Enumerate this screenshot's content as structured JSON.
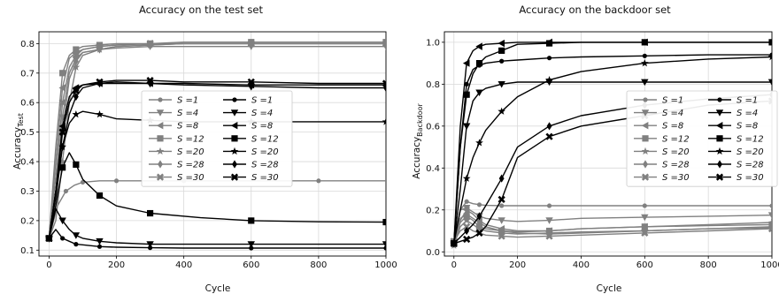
{
  "chart_data": [
    {
      "type": "line",
      "title": "Accuracy on the test set",
      "xlabel": "Cycle",
      "ylabel": "Accuracy",
      "ylabel_sub": "Test",
      "xlim": [
        -30,
        1000
      ],
      "ylim": [
        0.08,
        0.84
      ],
      "xticks": [
        0,
        200,
        400,
        600,
        800,
        1000
      ],
      "yticks": [
        0.1,
        0.2,
        0.3,
        0.4,
        0.5,
        0.6,
        0.7,
        0.8
      ],
      "grid": true,
      "legend_placement": "center",
      "legend_columns": [
        [
          "S =1",
          "S =4",
          "S =8",
          "S =12",
          "S =20",
          "S =28",
          "S =30"
        ],
        [
          "S =1",
          "S =4",
          "S =8",
          "S =12",
          "S =20",
          "S =28",
          "S =30"
        ]
      ],
      "series": [
        {
          "name": "S =1",
          "group": "gray",
          "marker": "circle",
          "x": [
            0,
            25,
            50,
            75,
            100,
            150,
            200,
            300,
            400,
            600,
            800,
            1000
          ],
          "y": [
            0.14,
            0.25,
            0.3,
            0.32,
            0.33,
            0.335,
            0.335,
            0.335,
            0.335,
            0.335,
            0.335,
            0.335
          ]
        },
        {
          "name": "S =4",
          "group": "gray",
          "marker": "tri-down",
          "x": [
            0,
            20,
            40,
            60,
            80,
            100,
            150,
            200,
            300,
            400,
            600,
            800,
            1000
          ],
          "y": [
            0.14,
            0.3,
            0.55,
            0.7,
            0.75,
            0.77,
            0.78,
            0.785,
            0.79,
            0.79,
            0.79,
            0.79,
            0.79
          ]
        },
        {
          "name": "S =8",
          "group": "gray",
          "marker": "tri-left",
          "x": [
            0,
            20,
            40,
            60,
            80,
            100,
            150,
            200,
            300,
            400,
            600,
            800,
            1000
          ],
          "y": [
            0.14,
            0.4,
            0.65,
            0.75,
            0.77,
            0.78,
            0.79,
            0.795,
            0.8,
            0.8,
            0.8,
            0.8,
            0.8
          ]
        },
        {
          "name": "S =12",
          "group": "gray",
          "marker": "square",
          "x": [
            0,
            20,
            40,
            60,
            80,
            100,
            150,
            200,
            300,
            400,
            600,
            800,
            1000
          ],
          "y": [
            0.14,
            0.45,
            0.7,
            0.76,
            0.78,
            0.79,
            0.795,
            0.8,
            0.8,
            0.805,
            0.805,
            0.805,
            0.805
          ]
        },
        {
          "name": "S =20",
          "group": "gray",
          "marker": "star",
          "x": [
            0,
            20,
            40,
            60,
            80,
            100,
            150,
            200,
            300,
            400,
            600,
            800,
            1000
          ],
          "y": [
            0.14,
            0.2,
            0.4,
            0.6,
            0.72,
            0.76,
            0.78,
            0.79,
            0.795,
            0.8,
            0.8,
            0.8,
            0.8
          ]
        },
        {
          "name": "S =28",
          "group": "gray",
          "marker": "diamond",
          "x": [
            0,
            20,
            40,
            60,
            80,
            100,
            150,
            200,
            300,
            400,
            600,
            800,
            1000
          ],
          "y": [
            0.14,
            0.25,
            0.5,
            0.68,
            0.74,
            0.77,
            0.78,
            0.79,
            0.795,
            0.8,
            0.8,
            0.8,
            0.8
          ]
        },
        {
          "name": "S =30",
          "group": "gray",
          "marker": "x",
          "x": [
            0,
            20,
            40,
            60,
            80,
            100,
            150,
            200,
            300,
            400,
            600,
            800,
            1000
          ],
          "y": [
            0.14,
            0.35,
            0.6,
            0.72,
            0.76,
            0.78,
            0.79,
            0.795,
            0.8,
            0.8,
            0.8,
            0.8,
            0.8
          ]
        },
        {
          "name": "S =1",
          "group": "black",
          "marker": "circle",
          "x": [
            0,
            20,
            40,
            60,
            80,
            100,
            150,
            200,
            300,
            400,
            600,
            800,
            1000
          ],
          "y": [
            0.14,
            0.17,
            0.14,
            0.13,
            0.12,
            0.118,
            0.112,
            0.11,
            0.108,
            0.107,
            0.107,
            0.107,
            0.107
          ]
        },
        {
          "name": "S =4",
          "group": "black",
          "marker": "tri-down",
          "x": [
            0,
            20,
            40,
            60,
            80,
            100,
            150,
            200,
            300,
            400,
            600,
            800,
            1000
          ],
          "y": [
            0.14,
            0.24,
            0.2,
            0.17,
            0.15,
            0.14,
            0.13,
            0.125,
            0.12,
            0.12,
            0.12,
            0.12,
            0.12
          ]
        },
        {
          "name": "S =8",
          "group": "black",
          "marker": "tri-left",
          "x": [
            0,
            20,
            40,
            60,
            80,
            100,
            150,
            200,
            300,
            400,
            600,
            800,
            1000
          ],
          "y": [
            0.14,
            0.3,
            0.52,
            0.62,
            0.65,
            0.66,
            0.665,
            0.665,
            0.665,
            0.665,
            0.66,
            0.66,
            0.66
          ]
        },
        {
          "name": "S =12",
          "group": "black",
          "marker": "square",
          "x": [
            0,
            20,
            40,
            60,
            80,
            100,
            150,
            200,
            300,
            450,
            600,
            800,
            1000
          ],
          "y": [
            0.14,
            0.25,
            0.38,
            0.43,
            0.39,
            0.34,
            0.285,
            0.25,
            0.225,
            0.21,
            0.2,
            0.196,
            0.195
          ]
        },
        {
          "name": "S =20",
          "group": "black",
          "marker": "star",
          "x": [
            0,
            20,
            40,
            60,
            80,
            100,
            150,
            200,
            300,
            400,
            600,
            800,
            1000
          ],
          "y": [
            0.14,
            0.3,
            0.45,
            0.53,
            0.56,
            0.57,
            0.56,
            0.545,
            0.54,
            0.535,
            0.535,
            0.535,
            0.535
          ]
        },
        {
          "name": "S =28",
          "group": "black",
          "marker": "diamond",
          "x": [
            0,
            20,
            40,
            60,
            80,
            100,
            150,
            200,
            300,
            400,
            600,
            800,
            1000
          ],
          "y": [
            0.14,
            0.28,
            0.45,
            0.56,
            0.62,
            0.65,
            0.665,
            0.67,
            0.665,
            0.66,
            0.655,
            0.65,
            0.65
          ]
        },
        {
          "name": "S =30",
          "group": "black",
          "marker": "x",
          "x": [
            0,
            20,
            40,
            60,
            80,
            100,
            150,
            200,
            300,
            400,
            600,
            800,
            1000
          ],
          "y": [
            0.14,
            0.3,
            0.5,
            0.6,
            0.64,
            0.66,
            0.67,
            0.675,
            0.675,
            0.67,
            0.67,
            0.665,
            0.665
          ]
        }
      ]
    },
    {
      "type": "line",
      "title": "Accuracy on the backdoor set",
      "xlabel": "Cycle",
      "ylabel": "Accuracy",
      "ylabel_sub": "Backdoor",
      "xlim": [
        -30,
        1000
      ],
      "ylim": [
        -0.02,
        1.05
      ],
      "xticks": [
        0,
        200,
        400,
        600,
        800,
        1000
      ],
      "yticks": [
        0.0,
        0.2,
        0.4,
        0.6,
        0.8,
        1.0
      ],
      "grid": true,
      "legend_placement": "center-right",
      "legend_columns": [
        [
          "S =1",
          "S =4",
          "S =8",
          "S =12",
          "S =20",
          "S =28",
          "S =30"
        ],
        [
          "S =1",
          "S =4",
          "S =8",
          "S =12",
          "S =20",
          "S =28",
          "S =30"
        ]
      ],
      "series": [
        {
          "name": "S =1",
          "group": "gray",
          "marker": "circle",
          "x": [
            0,
            20,
            40,
            60,
            80,
            100,
            150,
            200,
            300,
            400,
            600,
            800,
            1000
          ],
          "y": [
            0.05,
            0.2,
            0.24,
            0.23,
            0.225,
            0.222,
            0.22,
            0.22,
            0.22,
            0.22,
            0.22,
            0.22,
            0.22
          ]
        },
        {
          "name": "S =4",
          "group": "gray",
          "marker": "tri-down",
          "x": [
            0,
            20,
            40,
            60,
            80,
            100,
            150,
            200,
            300,
            400,
            600,
            800,
            1000
          ],
          "y": [
            0.05,
            0.2,
            0.21,
            0.19,
            0.17,
            0.16,
            0.15,
            0.145,
            0.15,
            0.16,
            0.165,
            0.17,
            0.175
          ]
        },
        {
          "name": "S =8",
          "group": "gray",
          "marker": "tri-left",
          "x": [
            0,
            20,
            40,
            60,
            80,
            100,
            150,
            200,
            300,
            400,
            600,
            800,
            1000
          ],
          "y": [
            0.04,
            0.15,
            0.2,
            0.18,
            0.15,
            0.13,
            0.11,
            0.1,
            0.1,
            0.11,
            0.12,
            0.13,
            0.14
          ]
        },
        {
          "name": "S =12",
          "group": "gray",
          "marker": "square",
          "x": [
            0,
            20,
            40,
            60,
            80,
            100,
            150,
            200,
            300,
            400,
            600,
            800,
            1000
          ],
          "y": [
            0.04,
            0.14,
            0.17,
            0.15,
            0.12,
            0.11,
            0.1,
            0.095,
            0.1,
            0.11,
            0.12,
            0.125,
            0.13
          ]
        },
        {
          "name": "S =20",
          "group": "gray",
          "marker": "star",
          "x": [
            0,
            20,
            40,
            60,
            80,
            100,
            150,
            200,
            300,
            400,
            600,
            800,
            1000
          ],
          "y": [
            0.03,
            0.12,
            0.15,
            0.13,
            0.11,
            0.1,
            0.09,
            0.085,
            0.09,
            0.095,
            0.1,
            0.11,
            0.115
          ]
        },
        {
          "name": "S =28",
          "group": "gray",
          "marker": "diamond",
          "x": [
            0,
            20,
            40,
            60,
            80,
            100,
            150,
            200,
            300,
            400,
            600,
            800,
            1000
          ],
          "y": [
            0.04,
            0.16,
            0.18,
            0.16,
            0.14,
            0.12,
            0.1,
            0.09,
            0.085,
            0.09,
            0.1,
            0.11,
            0.12
          ]
        },
        {
          "name": "S =30",
          "group": "gray",
          "marker": "x",
          "x": [
            0,
            20,
            40,
            60,
            80,
            100,
            150,
            200,
            300,
            400,
            600,
            800,
            1000
          ],
          "y": [
            0.05,
            0.1,
            0.12,
            0.1,
            0.09,
            0.08,
            0.075,
            0.07,
            0.075,
            0.08,
            0.09,
            0.1,
            0.11
          ]
        },
        {
          "name": "S =1",
          "group": "black",
          "marker": "circle",
          "x": [
            0,
            20,
            40,
            60,
            80,
            100,
            150,
            200,
            300,
            400,
            600,
            800,
            1000
          ],
          "y": [
            0.04,
            0.5,
            0.8,
            0.87,
            0.89,
            0.9,
            0.91,
            0.915,
            0.925,
            0.93,
            0.935,
            0.94,
            0.94
          ]
        },
        {
          "name": "S =4",
          "group": "black",
          "marker": "tri-down",
          "x": [
            0,
            20,
            40,
            60,
            80,
            100,
            150,
            200,
            300,
            400,
            600,
            800,
            1000
          ],
          "y": [
            0.04,
            0.3,
            0.6,
            0.72,
            0.76,
            0.78,
            0.8,
            0.81,
            0.81,
            0.81,
            0.81,
            0.81,
            0.81
          ]
        },
        {
          "name": "S =8",
          "group": "black",
          "marker": "tri-left",
          "x": [
            0,
            20,
            40,
            60,
            80,
            100,
            150,
            200,
            300,
            400,
            600,
            800,
            1000
          ],
          "y": [
            0.04,
            0.6,
            0.9,
            0.96,
            0.98,
            0.99,
            0.995,
            1.0,
            1.0,
            1.0,
            1.0,
            1.0,
            1.0
          ]
        },
        {
          "name": "S =12",
          "group": "black",
          "marker": "square",
          "x": [
            0,
            20,
            40,
            60,
            80,
            100,
            150,
            200,
            300,
            400,
            600,
            800,
            1000
          ],
          "y": [
            0.04,
            0.5,
            0.75,
            0.85,
            0.9,
            0.93,
            0.96,
            0.99,
            0.995,
            1.0,
            1.0,
            1.0,
            1.0
          ]
        },
        {
          "name": "S =20",
          "group": "black",
          "marker": "star",
          "x": [
            0,
            20,
            40,
            60,
            80,
            100,
            150,
            200,
            300,
            400,
            600,
            800,
            1000
          ],
          "y": [
            0.04,
            0.2,
            0.35,
            0.45,
            0.52,
            0.58,
            0.67,
            0.74,
            0.82,
            0.86,
            0.9,
            0.92,
            0.93
          ]
        },
        {
          "name": "S =28",
          "group": "black",
          "marker": "diamond",
          "x": [
            0,
            20,
            40,
            60,
            80,
            100,
            150,
            200,
            300,
            400,
            600,
            800,
            1000
          ],
          "y": [
            0.04,
            0.07,
            0.1,
            0.13,
            0.17,
            0.22,
            0.35,
            0.5,
            0.6,
            0.65,
            0.7,
            0.73,
            0.75
          ]
        },
        {
          "name": "S =30",
          "group": "black",
          "marker": "x",
          "x": [
            0,
            20,
            40,
            60,
            80,
            100,
            150,
            200,
            300,
            400,
            600,
            800,
            1000
          ],
          "y": [
            0.04,
            0.05,
            0.06,
            0.07,
            0.09,
            0.12,
            0.25,
            0.45,
            0.55,
            0.6,
            0.65,
            0.7,
            0.72
          ]
        }
      ]
    }
  ]
}
